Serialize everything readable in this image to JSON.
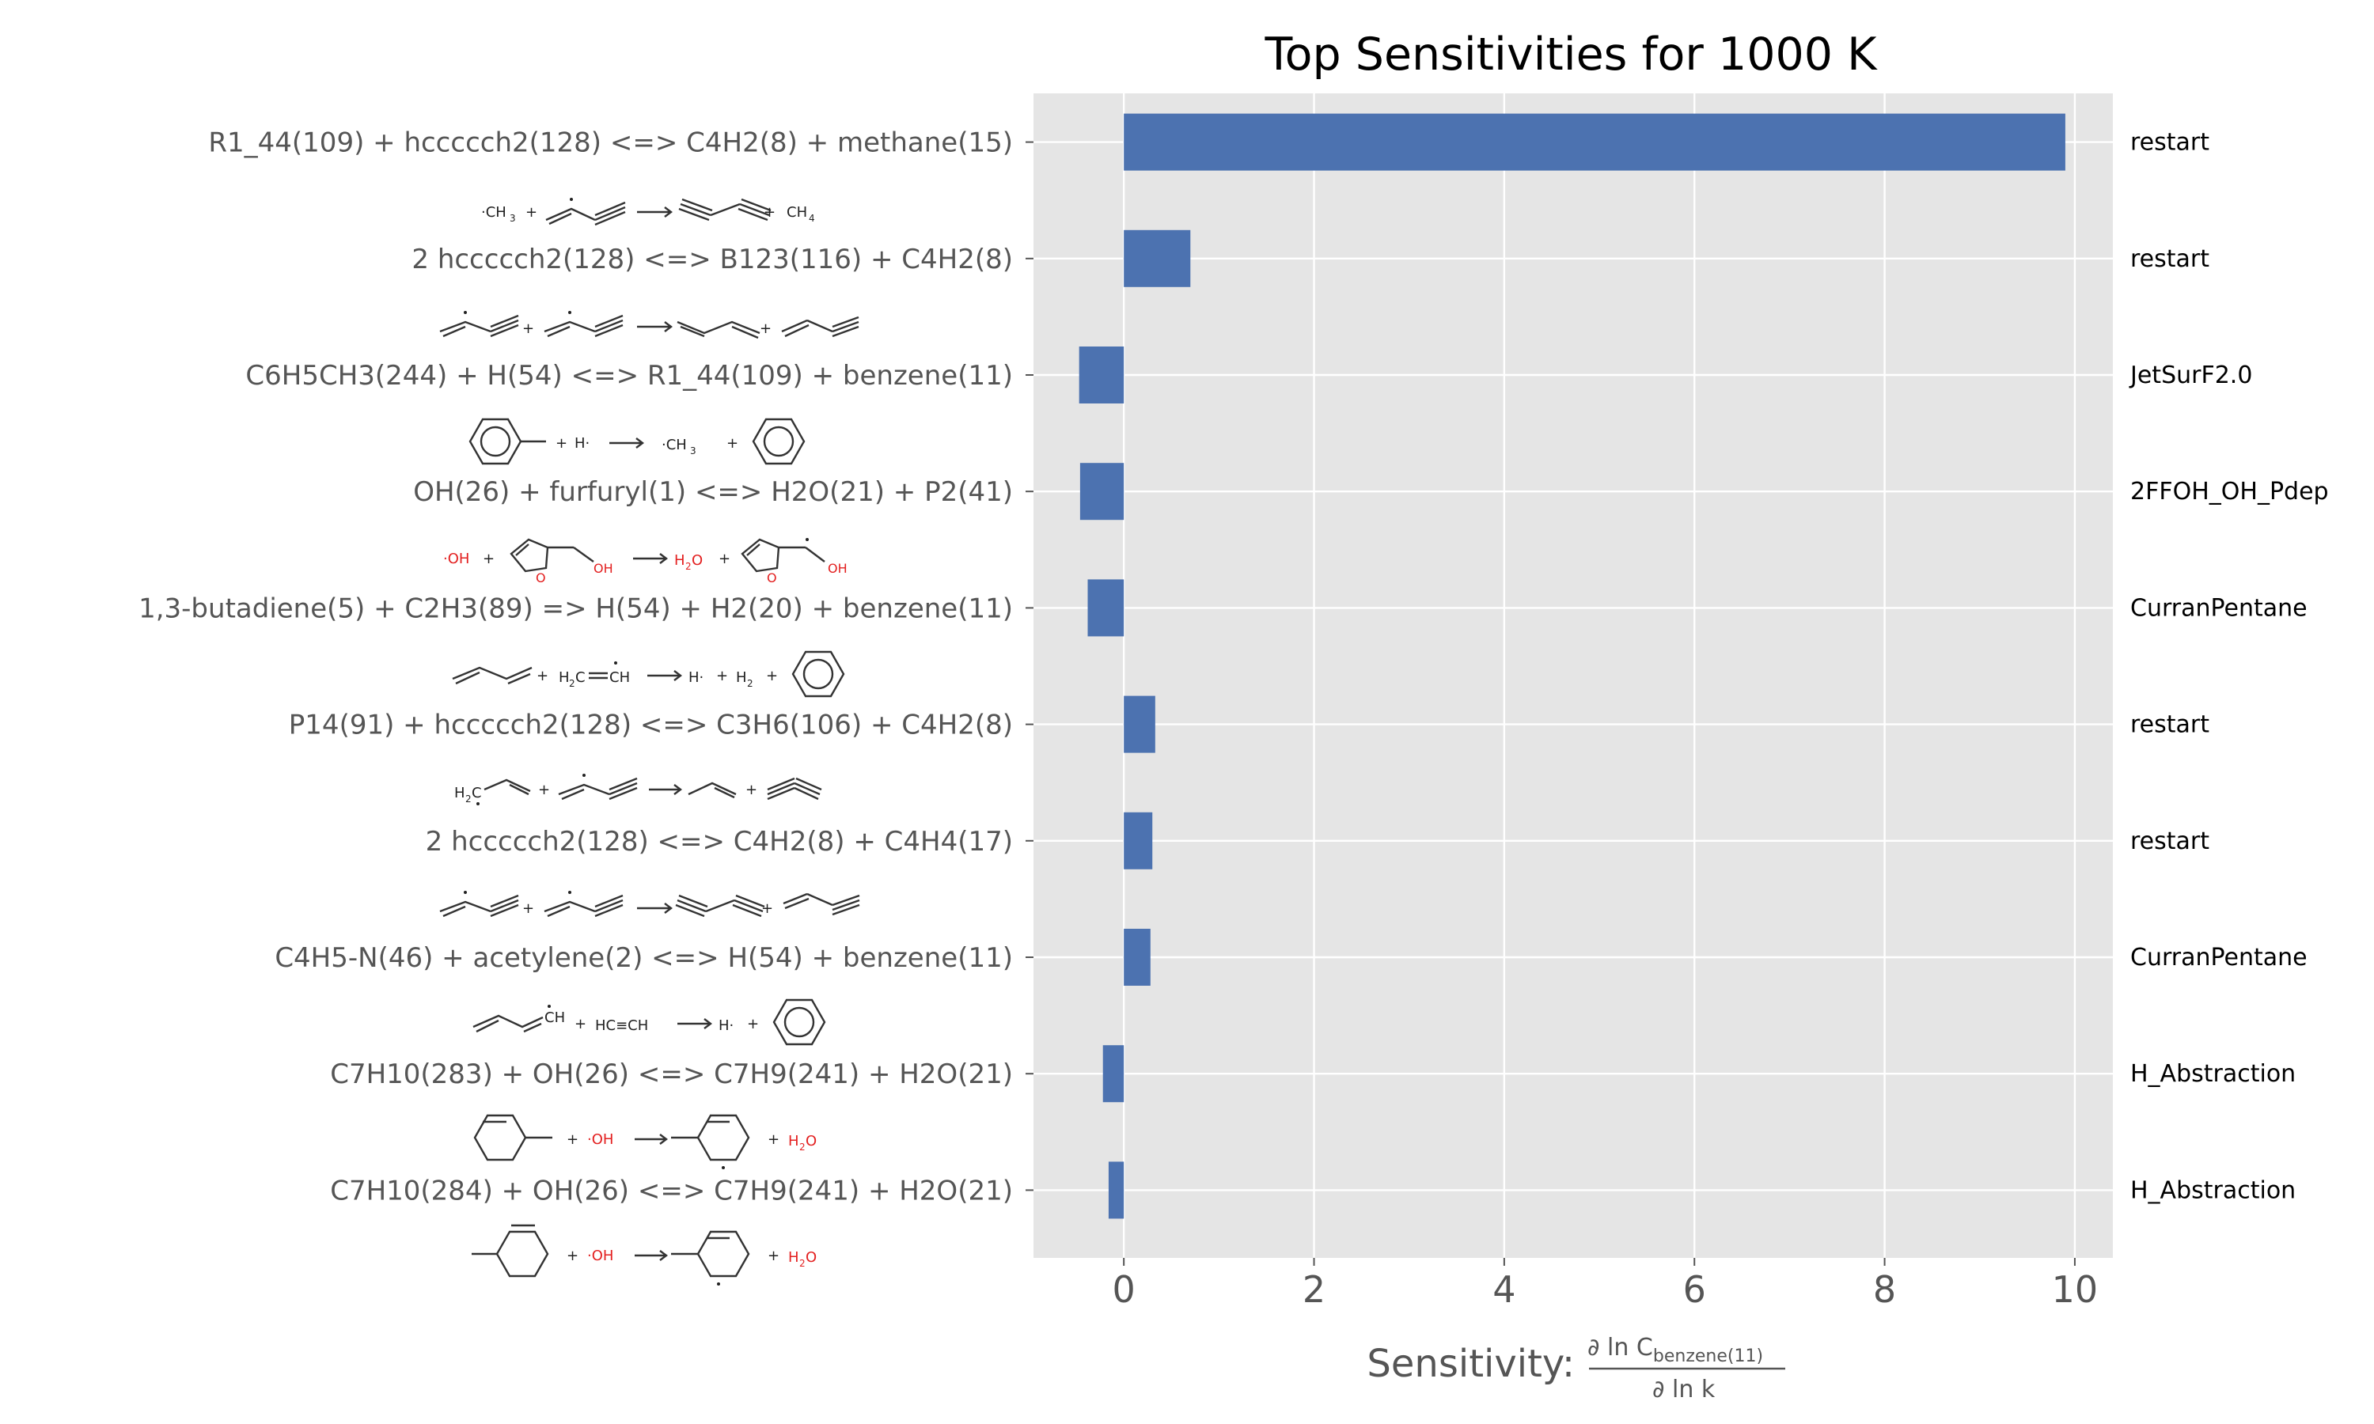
{
  "chart_data": {
    "type": "bar",
    "orientation": "horizontal",
    "title": "Top Sensitivities for 1000 K",
    "xlabel": "Sensitivity:",
    "xlabel_math": {
      "numerator_prefix": "∂ ln C",
      "numerator_subscript": "benzene(11)",
      "denominator": "∂ ln k"
    },
    "xlim": [
      -0.95,
      10.4
    ],
    "xticks": [
      0,
      2,
      4,
      6,
      8,
      10
    ],
    "grid": true,
    "bar_color": "#4c72b0",
    "background_color": "#e5e5e5",
    "categories": [
      "R1_44(109) + hccccch2(128) <=> C4H2(8) + methane(15)",
      "2 hccccch2(128) <=> B123(116) + C4H2(8)",
      "C6H5CH3(244) + H(54) <=> R1_44(109) + benzene(11)",
      "OH(26) + furfuryl(1) <=> H2O(21) + P2(41)",
      "1,3-butadiene(5) + C2H3(89) => H(54) + H2(20) + benzene(11)",
      "P14(91) + hccccch2(128) <=> C3H6(106) + C4H2(8)",
      "2 hccccch2(128) <=> C4H2(8) + C4H4(17)",
      "C4H5-N(46) + acetylene(2) <=> H(54) + benzene(11)",
      "C7H10(283) + OH(26) <=> C7H9(241) + H2O(21)",
      "C7H10(284) + OH(26) <=> C7H9(241) + H2O(21)"
    ],
    "values": [
      9.9,
      0.7,
      -0.47,
      -0.46,
      -0.38,
      0.33,
      0.3,
      0.28,
      -0.22,
      -0.16
    ],
    "sources": [
      "restart",
      "restart",
      "JetSurF2.0",
      "2FFOH_OH_Pdep",
      "CurranPentane",
      "restart",
      "restart",
      "CurranPentane",
      "H_Abstraction",
      "H_Abstraction"
    ]
  },
  "structure_labels": {
    "ch3_radical": "·CH",
    "ch3_sub": "3",
    "ch4": "CH",
    "ch4_sub": "4",
    "plus": "+",
    "h_radical": "H·",
    "oh_radical": "·OH",
    "oh": "OH",
    "o": "O",
    "h2o_h": "H",
    "h2o_sub": "2",
    "h2o_o": "O",
    "h2": "H",
    "h2_sub": "2",
    "vinyl_h2c": "H",
    "vinyl_c": "C",
    "vinyl_ch": "CH",
    "h2c_prefix": "H",
    "h2c_c": "C",
    "ch": "CH",
    "acetylene": "HC≡CH"
  }
}
